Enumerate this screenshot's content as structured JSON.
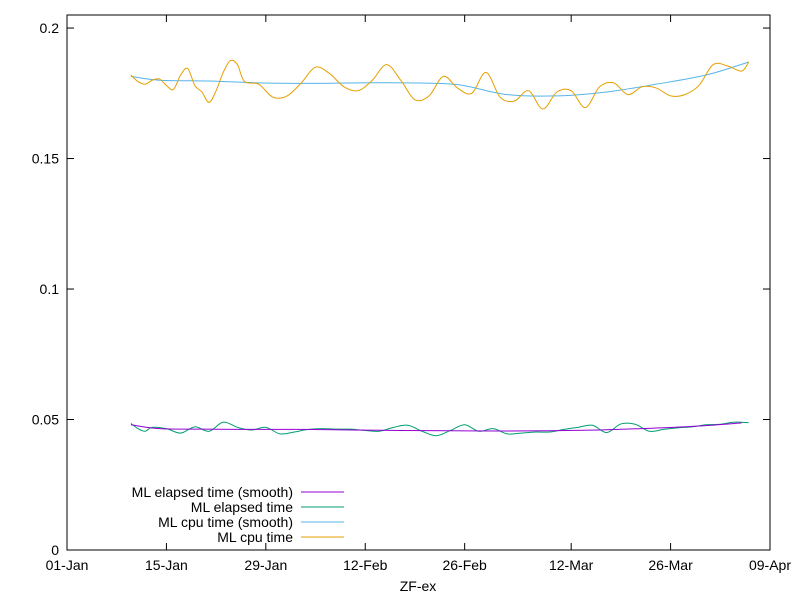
{
  "chart_data": {
    "type": "line",
    "title": "",
    "xlabel": "ZF-ex",
    "ylabel": "",
    "x_axis_type": "date",
    "xlim": [
      "2024-01-01",
      "2024-04-09"
    ],
    "ylim": [
      0,
      0.205
    ],
    "x_ticks": [
      {
        "date": "2024-01-01",
        "label": "01-Jan"
      },
      {
        "date": "2024-01-15",
        "label": "15-Jan"
      },
      {
        "date": "2024-01-29",
        "label": "29-Jan"
      },
      {
        "date": "2024-02-12",
        "label": "12-Feb"
      },
      {
        "date": "2024-02-26",
        "label": "26-Feb"
      },
      {
        "date": "2024-03-12",
        "label": "12-Mar"
      },
      {
        "date": "2024-03-26",
        "label": "26-Mar"
      },
      {
        "date": "2024-04-09",
        "label": "09-Apr"
      }
    ],
    "y_ticks": [
      {
        "value": 0,
        "label": "0"
      },
      {
        "value": 0.05,
        "label": "0.05"
      },
      {
        "value": 0.1,
        "label": "0.1"
      },
      {
        "value": 0.15,
        "label": "0.15"
      },
      {
        "value": 0.2,
        "label": "0.2"
      }
    ],
    "grid": false,
    "legend_position": "bottom-left",
    "series": [
      {
        "name": "ML elapsed time (smooth)",
        "color": "#9400d3",
        "x": [
          "2024-01-10",
          "2024-01-14",
          "2024-01-20",
          "2024-01-27",
          "2024-02-03",
          "2024-02-10",
          "2024-02-17",
          "2024-02-24",
          "2024-03-02",
          "2024-03-09",
          "2024-03-16",
          "2024-03-23",
          "2024-03-30",
          "2024-04-05"
        ],
        "y": [
          0.048,
          0.0465,
          0.0463,
          0.0462,
          0.0462,
          0.046,
          0.0458,
          0.0457,
          0.0456,
          0.0457,
          0.046,
          0.0466,
          0.0475,
          0.0487
        ]
      },
      {
        "name": "ML elapsed time",
        "color": "#009e73",
        "x": [
          "2024-01-10",
          "2024-01-11",
          "2024-01-12",
          "2024-01-13",
          "2024-01-15",
          "2024-01-17",
          "2024-01-19",
          "2024-01-21",
          "2024-01-23",
          "2024-01-25",
          "2024-01-27",
          "2024-01-29",
          "2024-01-31",
          "2024-02-02",
          "2024-02-04",
          "2024-02-06",
          "2024-02-08",
          "2024-02-10",
          "2024-02-12",
          "2024-02-14",
          "2024-02-16",
          "2024-02-18",
          "2024-02-20",
          "2024-02-22",
          "2024-02-24",
          "2024-02-26",
          "2024-02-28",
          "2024-03-01",
          "2024-03-03",
          "2024-03-05",
          "2024-03-07",
          "2024-03-09",
          "2024-03-11",
          "2024-03-13",
          "2024-03-15",
          "2024-03-17",
          "2024-03-19",
          "2024-03-21",
          "2024-03-23",
          "2024-03-25",
          "2024-03-27",
          "2024-03-29",
          "2024-03-31",
          "2024-04-02",
          "2024-04-04",
          "2024-04-06"
        ],
        "y": [
          0.0485,
          0.0465,
          0.0455,
          0.047,
          0.0465,
          0.0448,
          0.0472,
          0.0455,
          0.049,
          0.047,
          0.046,
          0.047,
          0.0445,
          0.0452,
          0.0462,
          0.0465,
          0.0463,
          0.0463,
          0.0458,
          0.0455,
          0.047,
          0.0478,
          0.0455,
          0.0438,
          0.0458,
          0.048,
          0.0455,
          0.0465,
          0.0445,
          0.0448,
          0.0452,
          0.0452,
          0.0462,
          0.047,
          0.0478,
          0.045,
          0.0483,
          0.0482,
          0.0455,
          0.0462,
          0.0468,
          0.0472,
          0.048,
          0.0482,
          0.049,
          0.0488
        ]
      },
      {
        "name": "ML cpu time (smooth)",
        "color": "#56b4e9",
        "x": [
          "2024-01-10",
          "2024-01-14",
          "2024-01-21",
          "2024-01-28",
          "2024-02-04",
          "2024-02-11",
          "2024-02-18",
          "2024-02-25",
          "2024-03-03",
          "2024-03-10",
          "2024-03-17",
          "2024-03-24",
          "2024-03-31",
          "2024-04-06"
        ],
        "y": [
          0.1815,
          0.18,
          0.1797,
          0.179,
          0.1788,
          0.179,
          0.179,
          0.1783,
          0.1745,
          0.174,
          0.1755,
          0.1785,
          0.182,
          0.187
        ]
      },
      {
        "name": "ML cpu time",
        "color": "#e69f00",
        "x": [
          "2024-01-10",
          "2024-01-11",
          "2024-01-12",
          "2024-01-13",
          "2024-01-14",
          "2024-01-15",
          "2024-01-16",
          "2024-01-17",
          "2024-01-18",
          "2024-01-19",
          "2024-01-20",
          "2024-01-21",
          "2024-01-22",
          "2024-01-23",
          "2024-01-24",
          "2024-01-25",
          "2024-01-26",
          "2024-01-28",
          "2024-01-30",
          "2024-02-01",
          "2024-02-03",
          "2024-02-05",
          "2024-02-07",
          "2024-02-09",
          "2024-02-11",
          "2024-02-13",
          "2024-02-15",
          "2024-02-17",
          "2024-02-19",
          "2024-02-21",
          "2024-02-23",
          "2024-02-25",
          "2024-02-27",
          "2024-02-29",
          "2024-03-02",
          "2024-03-04",
          "2024-03-06",
          "2024-03-08",
          "2024-03-10",
          "2024-03-12",
          "2024-03-14",
          "2024-03-16",
          "2024-03-18",
          "2024-03-20",
          "2024-03-22",
          "2024-03-24",
          "2024-03-26",
          "2024-03-28",
          "2024-03-30",
          "2024-04-01",
          "2024-04-03",
          "2024-04-05",
          "2024-04-06"
        ],
        "y": [
          0.182,
          0.1795,
          0.1785,
          0.18,
          0.1805,
          0.178,
          0.1765,
          0.182,
          0.1845,
          0.178,
          0.1755,
          0.1715,
          0.176,
          0.183,
          0.1875,
          0.186,
          0.1795,
          0.1785,
          0.1735,
          0.174,
          0.179,
          0.185,
          0.1825,
          0.1775,
          0.176,
          0.18,
          0.186,
          0.18,
          0.1725,
          0.174,
          0.1815,
          0.177,
          0.175,
          0.183,
          0.1735,
          0.172,
          0.176,
          0.169,
          0.1755,
          0.176,
          0.1695,
          0.1775,
          0.179,
          0.1745,
          0.1775,
          0.177,
          0.174,
          0.1745,
          0.178,
          0.186,
          0.1855,
          0.1835,
          0.187
        ]
      }
    ]
  }
}
